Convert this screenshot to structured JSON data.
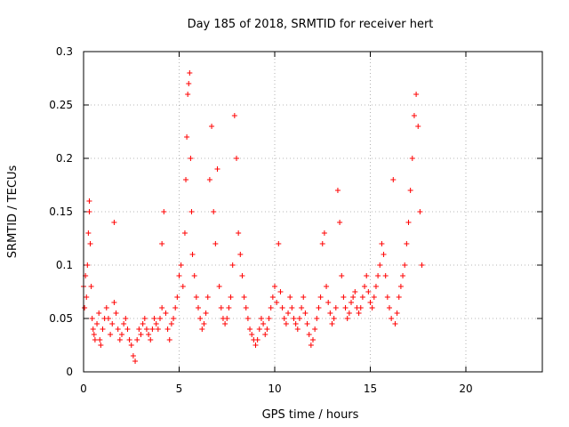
{
  "chart_data": {
    "type": "scatter",
    "title": "Day 185 of 2018, SRMTID for receiver hert",
    "xlabel": "GPS time / hours",
    "ylabel": "SRMTID / TECUs",
    "xlim": [
      0,
      24
    ],
    "ylim": [
      0,
      0.3
    ],
    "xticks": [
      0,
      5,
      10,
      15,
      20
    ],
    "xtick_labels": [
      "0",
      "5",
      "10",
      "15",
      "20"
    ],
    "yticks": [
      0,
      0.05,
      0.1,
      0.15,
      0.2,
      0.25,
      0.3
    ],
    "ytick_labels": [
      "0",
      "0.05",
      "0.1",
      "0.15",
      "0.2",
      "0.25",
      "0.3"
    ],
    "grid": true,
    "marker": "+",
    "series": [
      {
        "name": "SRMTID",
        "color": "#ff0000",
        "points": [
          [
            0.0,
            0.08
          ],
          [
            0.05,
            0.06
          ],
          [
            0.1,
            0.09
          ],
          [
            0.15,
            0.07
          ],
          [
            0.2,
            0.1
          ],
          [
            0.25,
            0.13
          ],
          [
            0.3,
            0.16
          ],
          [
            0.3,
            0.15
          ],
          [
            0.35,
            0.12
          ],
          [
            0.4,
            0.08
          ],
          [
            0.45,
            0.05
          ],
          [
            0.5,
            0.04
          ],
          [
            0.55,
            0.035
          ],
          [
            0.6,
            0.03
          ],
          [
            0.7,
            0.045
          ],
          [
            0.8,
            0.055
          ],
          [
            0.85,
            0.03
          ],
          [
            0.9,
            0.025
          ],
          [
            1.0,
            0.04
          ],
          [
            1.1,
            0.05
          ],
          [
            1.2,
            0.06
          ],
          [
            1.3,
            0.05
          ],
          [
            1.4,
            0.035
          ],
          [
            1.5,
            0.045
          ],
          [
            1.6,
            0.14
          ],
          [
            1.6,
            0.065
          ],
          [
            1.7,
            0.055
          ],
          [
            1.8,
            0.04
          ],
          [
            1.9,
            0.03
          ],
          [
            2.0,
            0.035
          ],
          [
            2.1,
            0.045
          ],
          [
            2.2,
            0.05
          ],
          [
            2.3,
            0.04
          ],
          [
            2.4,
            0.03
          ],
          [
            2.5,
            0.025
          ],
          [
            2.6,
            0.015
          ],
          [
            2.7,
            0.01
          ],
          [
            2.8,
            0.03
          ],
          [
            2.9,
            0.04
          ],
          [
            3.0,
            0.035
          ],
          [
            3.1,
            0.045
          ],
          [
            3.2,
            0.05
          ],
          [
            3.3,
            0.04
          ],
          [
            3.4,
            0.035
          ],
          [
            3.5,
            0.03
          ],
          [
            3.6,
            0.04
          ],
          [
            3.7,
            0.05
          ],
          [
            3.8,
            0.045
          ],
          [
            3.9,
            0.04
          ],
          [
            4.0,
            0.05
          ],
          [
            4.1,
            0.12
          ],
          [
            4.1,
            0.06
          ],
          [
            4.2,
            0.15
          ],
          [
            4.3,
            0.055
          ],
          [
            4.4,
            0.04
          ],
          [
            4.5,
            0.03
          ],
          [
            4.6,
            0.045
          ],
          [
            4.7,
            0.05
          ],
          [
            4.8,
            0.06
          ],
          [
            4.9,
            0.07
          ],
          [
            5.0,
            0.09
          ],
          [
            5.1,
            0.1
          ],
          [
            5.2,
            0.08
          ],
          [
            5.3,
            0.13
          ],
          [
            5.35,
            0.18
          ],
          [
            5.4,
            0.22
          ],
          [
            5.45,
            0.26
          ],
          [
            5.5,
            0.27
          ],
          [
            5.55,
            0.28
          ],
          [
            5.6,
            0.2
          ],
          [
            5.65,
            0.15
          ],
          [
            5.7,
            0.11
          ],
          [
            5.8,
            0.09
          ],
          [
            5.9,
            0.07
          ],
          [
            6.0,
            0.06
          ],
          [
            6.1,
            0.05
          ],
          [
            6.2,
            0.04
          ],
          [
            6.3,
            0.045
          ],
          [
            6.4,
            0.055
          ],
          [
            6.5,
            0.07
          ],
          [
            6.6,
            0.18
          ],
          [
            6.7,
            0.23
          ],
          [
            6.8,
            0.15
          ],
          [
            6.9,
            0.12
          ],
          [
            7.0,
            0.19
          ],
          [
            7.1,
            0.08
          ],
          [
            7.2,
            0.06
          ],
          [
            7.3,
            0.05
          ],
          [
            7.4,
            0.045
          ],
          [
            7.5,
            0.05
          ],
          [
            7.6,
            0.06
          ],
          [
            7.7,
            0.07
          ],
          [
            7.8,
            0.1
          ],
          [
            7.9,
            0.24
          ],
          [
            8.0,
            0.2
          ],
          [
            8.1,
            0.13
          ],
          [
            8.2,
            0.11
          ],
          [
            8.3,
            0.09
          ],
          [
            8.4,
            0.07
          ],
          [
            8.5,
            0.06
          ],
          [
            8.6,
            0.05
          ],
          [
            8.7,
            0.04
          ],
          [
            8.8,
            0.035
          ],
          [
            8.9,
            0.03
          ],
          [
            9.0,
            0.025
          ],
          [
            9.1,
            0.03
          ],
          [
            9.2,
            0.04
          ],
          [
            9.3,
            0.05
          ],
          [
            9.4,
            0.045
          ],
          [
            9.5,
            0.035
          ],
          [
            9.6,
            0.04
          ],
          [
            9.7,
            0.05
          ],
          [
            9.8,
            0.06
          ],
          [
            9.9,
            0.07
          ],
          [
            10.0,
            0.08
          ],
          [
            10.1,
            0.065
          ],
          [
            10.2,
            0.12
          ],
          [
            10.3,
            0.075
          ],
          [
            10.4,
            0.06
          ],
          [
            10.5,
            0.05
          ],
          [
            10.6,
            0.045
          ],
          [
            10.7,
            0.055
          ],
          [
            10.8,
            0.07
          ],
          [
            10.9,
            0.06
          ],
          [
            11.0,
            0.05
          ],
          [
            11.1,
            0.045
          ],
          [
            11.2,
            0.04
          ],
          [
            11.3,
            0.05
          ],
          [
            11.4,
            0.06
          ],
          [
            11.5,
            0.07
          ],
          [
            11.6,
            0.055
          ],
          [
            11.7,
            0.045
          ],
          [
            11.8,
            0.035
          ],
          [
            11.9,
            0.025
          ],
          [
            12.0,
            0.03
          ],
          [
            12.1,
            0.04
          ],
          [
            12.2,
            0.05
          ],
          [
            12.3,
            0.06
          ],
          [
            12.4,
            0.07
          ],
          [
            12.5,
            0.12
          ],
          [
            12.6,
            0.13
          ],
          [
            12.7,
            0.08
          ],
          [
            12.8,
            0.065
          ],
          [
            12.9,
            0.055
          ],
          [
            13.0,
            0.045
          ],
          [
            13.1,
            0.05
          ],
          [
            13.2,
            0.06
          ],
          [
            13.3,
            0.17
          ],
          [
            13.4,
            0.14
          ],
          [
            13.5,
            0.09
          ],
          [
            13.6,
            0.07
          ],
          [
            13.7,
            0.06
          ],
          [
            13.8,
            0.05
          ],
          [
            13.9,
            0.055
          ],
          [
            14.0,
            0.065
          ],
          [
            14.1,
            0.07
          ],
          [
            14.2,
            0.075
          ],
          [
            14.3,
            0.06
          ],
          [
            14.4,
            0.055
          ],
          [
            14.5,
            0.06
          ],
          [
            14.6,
            0.07
          ],
          [
            14.7,
            0.08
          ],
          [
            14.8,
            0.09
          ],
          [
            14.9,
            0.075
          ],
          [
            15.0,
            0.065
          ],
          [
            15.1,
            0.06
          ],
          [
            15.2,
            0.07
          ],
          [
            15.3,
            0.08
          ],
          [
            15.4,
            0.09
          ],
          [
            15.5,
            0.1
          ],
          [
            15.6,
            0.12
          ],
          [
            15.7,
            0.11
          ],
          [
            15.8,
            0.09
          ],
          [
            15.9,
            0.07
          ],
          [
            16.0,
            0.06
          ],
          [
            16.1,
            0.05
          ],
          [
            16.2,
            0.18
          ],
          [
            16.3,
            0.045
          ],
          [
            16.4,
            0.055
          ],
          [
            16.5,
            0.07
          ],
          [
            16.6,
            0.08
          ],
          [
            16.7,
            0.09
          ],
          [
            16.8,
            0.1
          ],
          [
            16.9,
            0.12
          ],
          [
            17.0,
            0.14
          ],
          [
            17.1,
            0.17
          ],
          [
            17.2,
            0.2
          ],
          [
            17.3,
            0.24
          ],
          [
            17.4,
            0.26
          ],
          [
            17.5,
            0.23
          ],
          [
            17.6,
            0.15
          ],
          [
            17.7,
            0.1
          ]
        ]
      }
    ]
  }
}
